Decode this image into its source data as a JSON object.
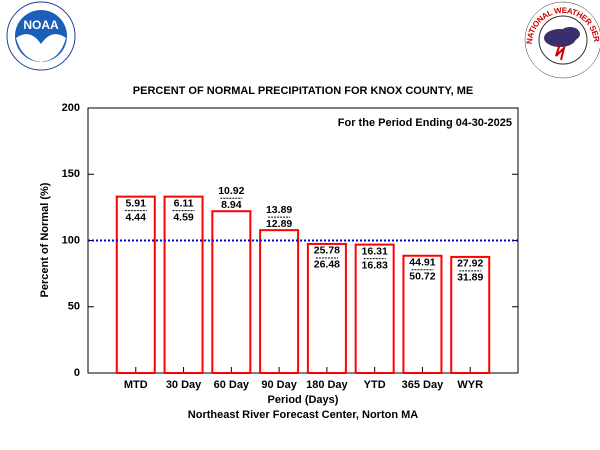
{
  "logos": {
    "left": "NOAA",
    "right": "NATIONAL WEATHER SERVICE"
  },
  "chart_data": {
    "type": "bar",
    "title": "PERCENT OF NORMAL PRECIPITATION FOR KNOX COUNTY, ME",
    "subtitle": "For the Period Ending 04-30-2025",
    "x_label": "Period (Days)",
    "y_label": "Percent of Normal (%)",
    "footer": "Northeast River Forecast Center, Norton MA",
    "categories": [
      "MTD",
      "30 Day",
      "60 Day",
      "90 Day",
      "180 Day",
      "YTD",
      "365 Day",
      "WYR"
    ],
    "values": [
      133.1,
      133.1,
      122.1,
      107.8,
      97.4,
      96.9,
      88.5,
      87.6
    ],
    "observed": [
      5.91,
      6.11,
      10.92,
      13.89,
      25.78,
      16.31,
      44.91,
      27.92
    ],
    "normal": [
      4.44,
      4.59,
      8.94,
      12.89,
      26.48,
      16.83,
      50.72,
      31.89
    ],
    "color": "#ff0000",
    "ylim": [
      0,
      200
    ],
    "yticks": [
      0,
      50,
      100,
      150,
      200
    ],
    "reference_line": {
      "value": 100,
      "color": "#0000cc"
    }
  }
}
